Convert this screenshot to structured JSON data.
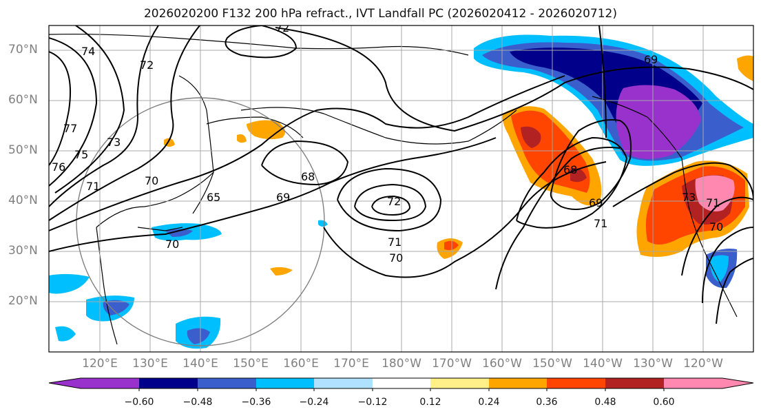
{
  "title": "2026020200 F132 200 hPa refract., IVT Landfall PC (2026020412 - 2026020712)",
  "lat_labels": [
    "70°N",
    "60°N",
    "50°N",
    "40°N",
    "30°N",
    "20°N"
  ],
  "lon_labels": [
    "120°E",
    "130°E",
    "140°E",
    "150°E",
    "160°E",
    "170°E",
    "180°W",
    "170°W",
    "160°W",
    "150°W",
    "140°W",
    "130°W",
    "120°W"
  ],
  "colorbar": {
    "ticks": [
      "−0.60",
      "−0.48",
      "−0.36",
      "−0.24",
      "−0.12",
      "0.12",
      "0.24",
      "0.36",
      "0.48",
      "0.60"
    ],
    "colors": [
      "#9932cc",
      "#00008b",
      "#3a5fcd",
      "#00bfff",
      "#b0e2ff",
      "#ffffff",
      "#fff08a",
      "#ffa500",
      "#ff4500",
      "#b22222",
      "#ff88b0"
    ]
  },
  "contour_labels": [
    "72",
    "74",
    "72",
    "69",
    "77",
    "76",
    "75",
    "73",
    "71",
    "70",
    "68",
    "69",
    "68",
    "72",
    "71",
    "70",
    "69",
    "71",
    "65",
    "70",
    "70",
    "71",
    "73"
  ]
}
